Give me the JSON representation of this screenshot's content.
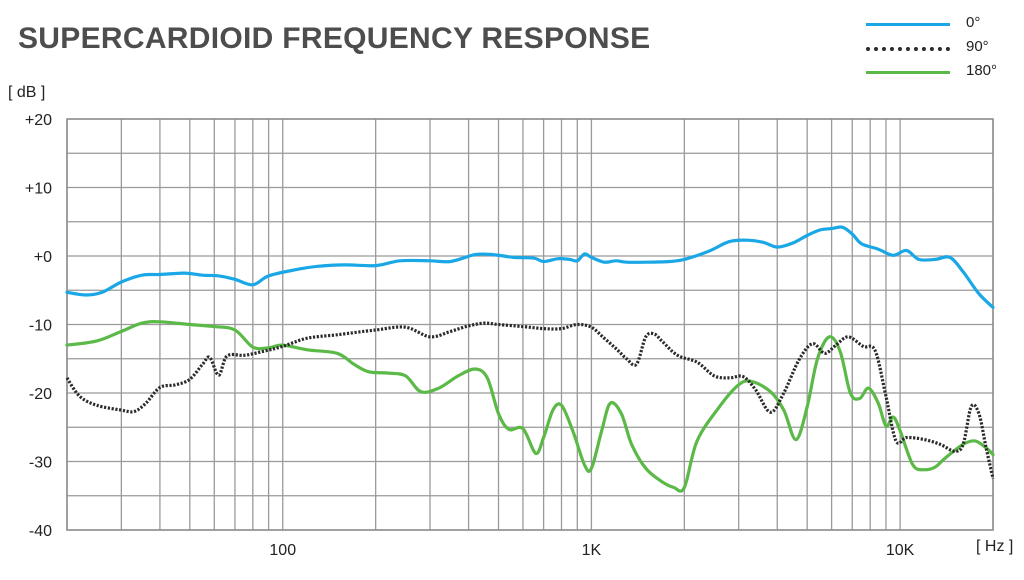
{
  "chart_data": {
    "type": "line",
    "title": "SUPERCARDIOID FREQUENCY RESPONSE",
    "ylabel": "[ dB ]",
    "xlabel": "[ Hz ]",
    "x_scale": "log",
    "xlim": [
      20,
      20000
    ],
    "ylim": [
      -40,
      20
    ],
    "grid": true,
    "legend_position": "top-right",
    "y_ticks": [
      20,
      10,
      0,
      -10,
      -20,
      -30,
      -40
    ],
    "y_tick_labels": [
      "+20",
      "+10",
      "+0",
      "-10",
      "-20",
      "-30",
      "-40"
    ],
    "x_ticks": [
      100,
      1000,
      10000
    ],
    "x_tick_labels": [
      "100",
      "1K",
      "10K"
    ],
    "series": [
      {
        "name": "0°",
        "color": "#1aa7e6",
        "style": "solid",
        "points": [
          [
            20,
            -5.3
          ],
          [
            23,
            -5.7
          ],
          [
            26,
            -5.3
          ],
          [
            30,
            -3.8
          ],
          [
            35,
            -2.8
          ],
          [
            40,
            -2.7
          ],
          [
            48,
            -2.5
          ],
          [
            55,
            -2.8
          ],
          [
            62,
            -2.9
          ],
          [
            70,
            -3.4
          ],
          [
            80,
            -4.2
          ],
          [
            90,
            -2.9
          ],
          [
            110,
            -2.0
          ],
          [
            130,
            -1.5
          ],
          [
            160,
            -1.3
          ],
          [
            200,
            -1.4
          ],
          [
            240,
            -0.7
          ],
          [
            300,
            -0.7
          ],
          [
            350,
            -0.8
          ],
          [
            420,
            0.2
          ],
          [
            480,
            0.2
          ],
          [
            560,
            -0.2
          ],
          [
            650,
            -0.3
          ],
          [
            700,
            -0.8
          ],
          [
            780,
            -0.4
          ],
          [
            850,
            -0.5
          ],
          [
            900,
            -0.7
          ],
          [
            950,
            0.3
          ],
          [
            1000,
            -0.2
          ],
          [
            1100,
            -0.9
          ],
          [
            1200,
            -0.7
          ],
          [
            1300,
            -0.9
          ],
          [
            1500,
            -0.9
          ],
          [
            1800,
            -0.8
          ],
          [
            2000,
            -0.5
          ],
          [
            2400,
            0.7
          ],
          [
            2800,
            2.1
          ],
          [
            3200,
            2.3
          ],
          [
            3600,
            2.0
          ],
          [
            4000,
            1.3
          ],
          [
            4500,
            1.9
          ],
          [
            5000,
            3.0
          ],
          [
            5500,
            3.8
          ],
          [
            6000,
            4.0
          ],
          [
            6500,
            4.2
          ],
          [
            7000,
            3.2
          ],
          [
            7500,
            1.8
          ],
          [
            8500,
            1.0
          ],
          [
            9500,
            0.1
          ],
          [
            10500,
            0.8
          ],
          [
            11500,
            -0.5
          ],
          [
            13000,
            -0.5
          ],
          [
            14500,
            -0.2
          ],
          [
            16000,
            -2.3
          ],
          [
            18000,
            -5.5
          ],
          [
            20000,
            -7.5
          ]
        ]
      },
      {
        "name": "90°",
        "color": "#2b2b2b",
        "style": "dotted",
        "points": [
          [
            20,
            -17.8
          ],
          [
            22,
            -20.5
          ],
          [
            25,
            -21.8
          ],
          [
            30,
            -22.5
          ],
          [
            33,
            -22.7
          ],
          [
            36,
            -21.5
          ],
          [
            40,
            -19.2
          ],
          [
            45,
            -18.8
          ],
          [
            50,
            -18.0
          ],
          [
            55,
            -15.8
          ],
          [
            58,
            -14.8
          ],
          [
            62,
            -17.4
          ],
          [
            66,
            -14.6
          ],
          [
            75,
            -14.5
          ],
          [
            85,
            -14.0
          ],
          [
            100,
            -13.2
          ],
          [
            120,
            -12.0
          ],
          [
            150,
            -11.5
          ],
          [
            200,
            -10.8
          ],
          [
            250,
            -10.4
          ],
          [
            300,
            -11.8
          ],
          [
            350,
            -11.0
          ],
          [
            400,
            -10.2
          ],
          [
            450,
            -9.8
          ],
          [
            500,
            -10.0
          ],
          [
            600,
            -10.3
          ],
          [
            700,
            -10.6
          ],
          [
            800,
            -10.6
          ],
          [
            900,
            -10.0
          ],
          [
            1000,
            -10.4
          ],
          [
            1100,
            -12.0
          ],
          [
            1200,
            -13.5
          ],
          [
            1300,
            -15.0
          ],
          [
            1400,
            -15.8
          ],
          [
            1500,
            -11.8
          ],
          [
            1600,
            -11.4
          ],
          [
            1700,
            -12.5
          ],
          [
            1900,
            -14.5
          ],
          [
            2200,
            -15.5
          ],
          [
            2500,
            -17.5
          ],
          [
            2800,
            -17.8
          ],
          [
            3100,
            -17.6
          ],
          [
            3400,
            -19.5
          ],
          [
            3800,
            -22.8
          ],
          [
            4200,
            -20.0
          ],
          [
            4700,
            -15.2
          ],
          [
            5200,
            -12.8
          ],
          [
            5700,
            -14.2
          ],
          [
            6200,
            -13.0
          ],
          [
            6800,
            -11.8
          ],
          [
            7600,
            -13.2
          ],
          [
            8300,
            -13.8
          ],
          [
            9000,
            -20.5
          ],
          [
            9700,
            -27.0
          ],
          [
            10500,
            -26.5
          ],
          [
            12000,
            -26.8
          ],
          [
            13500,
            -27.5
          ],
          [
            15000,
            -28.5
          ],
          [
            16000,
            -27.5
          ],
          [
            17000,
            -22.0
          ],
          [
            18000,
            -23.0
          ],
          [
            19000,
            -28.0
          ],
          [
            20000,
            -32.5
          ]
        ]
      },
      {
        "name": "180°",
        "color": "#5bb947",
        "style": "solid",
        "points": [
          [
            20,
            -13.0
          ],
          [
            25,
            -12.4
          ],
          [
            30,
            -11.0
          ],
          [
            35,
            -9.8
          ],
          [
            40,
            -9.6
          ],
          [
            50,
            -10.0
          ],
          [
            60,
            -10.3
          ],
          [
            70,
            -10.8
          ],
          [
            80,
            -13.3
          ],
          [
            90,
            -13.4
          ],
          [
            100,
            -13.0
          ],
          [
            120,
            -13.7
          ],
          [
            150,
            -14.2
          ],
          [
            170,
            -15.8
          ],
          [
            190,
            -16.9
          ],
          [
            220,
            -17.1
          ],
          [
            250,
            -17.5
          ],
          [
            280,
            -19.8
          ],
          [
            320,
            -19.3
          ],
          [
            370,
            -17.5
          ],
          [
            420,
            -16.5
          ],
          [
            460,
            -17.8
          ],
          [
            500,
            -23.0
          ],
          [
            540,
            -25.3
          ],
          [
            600,
            -25.2
          ],
          [
            660,
            -28.8
          ],
          [
            700,
            -26.5
          ],
          [
            750,
            -22.5
          ],
          [
            800,
            -21.8
          ],
          [
            870,
            -25.5
          ],
          [
            950,
            -30.5
          ],
          [
            1000,
            -31.0
          ],
          [
            1080,
            -25.5
          ],
          [
            1150,
            -21.5
          ],
          [
            1250,
            -23.0
          ],
          [
            1350,
            -27.5
          ],
          [
            1500,
            -31.0
          ],
          [
            1700,
            -33.0
          ],
          [
            1850,
            -33.8
          ],
          [
            2000,
            -33.8
          ],
          [
            2200,
            -27.0
          ],
          [
            2600,
            -22.0
          ],
          [
            3000,
            -18.8
          ],
          [
            3300,
            -18.3
          ],
          [
            3800,
            -19.8
          ],
          [
            4200,
            -22.5
          ],
          [
            4600,
            -26.8
          ],
          [
            5000,
            -22.0
          ],
          [
            5400,
            -15.0
          ],
          [
            5900,
            -11.8
          ],
          [
            6400,
            -14.0
          ],
          [
            6900,
            -20.0
          ],
          [
            7400,
            -20.8
          ],
          [
            7900,
            -19.3
          ],
          [
            8500,
            -21.5
          ],
          [
            9000,
            -24.8
          ],
          [
            9500,
            -23.5
          ],
          [
            10000,
            -25.5
          ],
          [
            11000,
            -30.5
          ],
          [
            12000,
            -31.2
          ],
          [
            13000,
            -30.8
          ],
          [
            14000,
            -29.5
          ],
          [
            16000,
            -27.5
          ],
          [
            17500,
            -27.0
          ],
          [
            19000,
            -28.0
          ],
          [
            20000,
            -29.0
          ]
        ]
      }
    ]
  }
}
